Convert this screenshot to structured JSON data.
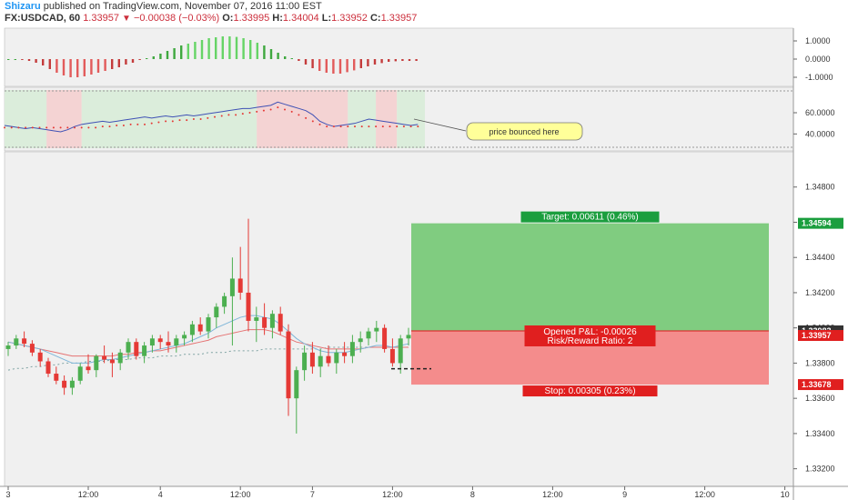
{
  "header": {
    "author": "Shizaru",
    "published_text": "published on TradingView.com, November 07, 2016 11:00 EST",
    "symbol": "FX:USDCAD, 60",
    "last": "1.33957",
    "change": "−0.00038 (−0.03%)",
    "o_label": "O:",
    "o_value": "1.33995",
    "h_label": "H:",
    "h_value": "1.34004",
    "l_label": "L:",
    "l_value": "1.33952",
    "c_label": "C:",
    "c_value": "1.33957"
  },
  "colors": {
    "up": "#26a69a",
    "bull_candle": "#4caf50",
    "bear_candle": "#e53935",
    "target_zone": "#80cc80",
    "stop_zone": "#f48c8c",
    "tag_green": "#1b9e3e",
    "tag_red": "#e01f1f",
    "rsi_line": "#3f51b5",
    "rsi_signal": "#e53935",
    "ma_fast": "#7eb6d9",
    "ma_slow": "#e57373",
    "ma_long": "#7fa3a3",
    "callout_fill": "#ffff99"
  },
  "chart_data": [
    {
      "type": "bar",
      "name": "histogram oscillator",
      "yticks": [
        "1.0000",
        "0.0000",
        "-1.0000"
      ],
      "ylim": [
        -1.3,
        1.5
      ],
      "values": [
        0.0,
        0.0,
        -0.05,
        -0.1,
        -0.2,
        -0.35,
        -0.55,
        -0.75,
        -0.9,
        -1.0,
        -1.0,
        -0.95,
        -0.85,
        -0.75,
        -0.65,
        -0.55,
        -0.45,
        -0.3,
        -0.2,
        -0.05,
        0.05,
        0.15,
        0.3,
        0.45,
        0.6,
        0.75,
        0.85,
        0.95,
        1.05,
        1.15,
        1.2,
        1.25,
        1.25,
        1.22,
        1.15,
        1.05,
        0.9,
        0.75,
        0.55,
        0.35,
        0.15,
        0.05,
        -0.1,
        -0.3,
        -0.5,
        -0.65,
        -0.75,
        -0.8,
        -0.8,
        -0.72,
        -0.62,
        -0.5,
        -0.4,
        -0.3,
        -0.22,
        -0.15,
        -0.12,
        -0.1,
        -0.1,
        -0.1
      ]
    },
    {
      "type": "line",
      "name": "rsi panel",
      "yticks": [
        "60.0000",
        "40.0000"
      ],
      "ylim": [
        24,
        84
      ],
      "series_rsi": [
        48,
        47,
        46,
        45,
        46,
        45,
        44,
        43,
        42,
        44,
        47,
        49,
        50,
        51,
        52,
        51,
        52,
        53,
        54,
        55,
        56,
        55,
        56,
        57,
        56,
        57,
        58,
        57,
        58,
        59,
        60,
        61,
        62,
        63,
        64,
        64,
        65,
        66,
        67,
        70,
        68,
        66,
        64,
        62,
        58,
        52,
        49,
        47,
        48,
        49,
        50,
        52,
        54,
        53,
        52,
        51,
        50,
        49,
        48,
        49
      ],
      "series_signal": [
        46,
        46,
        46,
        46,
        46,
        46,
        46,
        46,
        46,
        46,
        46,
        46,
        46,
        46,
        47,
        47,
        48,
        48,
        49,
        49,
        49,
        50,
        51,
        52,
        52,
        53,
        53,
        54,
        54,
        55,
        56,
        57,
        58,
        58,
        59,
        60,
        61,
        62,
        63,
        65,
        63,
        61,
        58,
        55,
        52,
        49,
        47,
        47,
        47,
        47,
        47,
        47,
        47,
        47,
        47,
        47,
        47,
        47,
        47,
        47
      ],
      "annotation": "price bounced here",
      "background_bands": [
        {
          "from": 0,
          "to": 6,
          "color": "green"
        },
        {
          "from": 6,
          "to": 11,
          "color": "red"
        },
        {
          "from": 11,
          "to": 36,
          "color": "green"
        },
        {
          "from": 36,
          "to": 49,
          "color": "red"
        },
        {
          "from": 49,
          "to": 53,
          "color": "green"
        },
        {
          "from": 53,
          "to": 56,
          "color": "red"
        },
        {
          "from": 56,
          "to": 60,
          "color": "green"
        }
      ]
    },
    {
      "type": "candlestick",
      "name": "USDCAD 60",
      "ylim": [
        1.331,
        1.35
      ],
      "yticks": [
        "1.34800",
        "1.34600",
        "1.34400",
        "1.34200",
        "1.34000",
        "1.33800",
        "1.33600",
        "1.33400",
        "1.33200"
      ],
      "xticks": [
        {
          "label": "3",
          "i": 0
        },
        {
          "label": "12:00",
          "i": 10
        },
        {
          "label": "4",
          "i": 19
        },
        {
          "label": "12:00",
          "i": 29
        },
        {
          "label": "7",
          "i": 38
        },
        {
          "label": "12:00",
          "i": 48
        },
        {
          "label": "8",
          "i": 58
        },
        {
          "label": "12:00",
          "i": 68
        },
        {
          "label": "9",
          "i": 77
        },
        {
          "label": "12:00",
          "i": 87
        },
        {
          "label": "10",
          "i": 97
        }
      ],
      "candles": [
        [
          1.3388,
          1.3392,
          1.3384,
          1.339
        ],
        [
          1.339,
          1.3396,
          1.3388,
          1.3394
        ],
        [
          1.3394,
          1.3398,
          1.3389,
          1.3391
        ],
        [
          1.3391,
          1.3393,
          1.3384,
          1.3386
        ],
        [
          1.3386,
          1.3388,
          1.3378,
          1.3381
        ],
        [
          1.3381,
          1.3383,
          1.3372,
          1.3374
        ],
        [
          1.3374,
          1.3378,
          1.3368,
          1.337
        ],
        [
          1.337,
          1.3373,
          1.3362,
          1.3366
        ],
        [
          1.3366,
          1.3372,
          1.3362,
          1.337
        ],
        [
          1.337,
          1.338,
          1.3368,
          1.3378
        ],
        [
          1.3378,
          1.3385,
          1.3374,
          1.3376
        ],
        [
          1.3376,
          1.3385,
          1.3372,
          1.3384
        ],
        [
          1.3384,
          1.339,
          1.338,
          1.3382
        ],
        [
          1.3382,
          1.3386,
          1.3372,
          1.338
        ],
        [
          1.338,
          1.3388,
          1.3376,
          1.3386
        ],
        [
          1.3386,
          1.3394,
          1.3382,
          1.3392
        ],
        [
          1.3392,
          1.3394,
          1.3382,
          1.3384
        ],
        [
          1.3384,
          1.3392,
          1.338,
          1.339
        ],
        [
          1.339,
          1.3396,
          1.3386,
          1.3394
        ],
        [
          1.3394,
          1.3396,
          1.3388,
          1.3392
        ],
        [
          1.3392,
          1.3398,
          1.3386,
          1.339
        ],
        [
          1.339,
          1.3396,
          1.3386,
          1.3394
        ],
        [
          1.3394,
          1.3398,
          1.339,
          1.3396
        ],
        [
          1.3396,
          1.3404,
          1.3392,
          1.3402
        ],
        [
          1.3402,
          1.3406,
          1.3396,
          1.3398
        ],
        [
          1.3398,
          1.3408,
          1.3394,
          1.3406
        ],
        [
          1.3406,
          1.3414,
          1.34,
          1.3412
        ],
        [
          1.3412,
          1.342,
          1.3408,
          1.3418
        ],
        [
          1.3418,
          1.344,
          1.339,
          1.3428
        ],
        [
          1.3428,
          1.3446,
          1.3416,
          1.342
        ],
        [
          1.342,
          1.3462,
          1.3398,
          1.3404
        ],
        [
          1.3404,
          1.3412,
          1.3392,
          1.3406
        ],
        [
          1.3406,
          1.3414,
          1.3396,
          1.34
        ],
        [
          1.34,
          1.341,
          1.3394,
          1.3408
        ],
        [
          1.3408,
          1.3412,
          1.3396,
          1.3398
        ],
        [
          1.3398,
          1.3402,
          1.335,
          1.336
        ],
        [
          1.336,
          1.3378,
          1.334,
          1.3376
        ],
        [
          1.3376,
          1.339,
          1.337,
          1.3386
        ],
        [
          1.3386,
          1.3392,
          1.3374,
          1.3378
        ],
        [
          1.3378,
          1.3388,
          1.3372,
          1.3384
        ],
        [
          1.3384,
          1.339,
          1.3378,
          1.338
        ],
        [
          1.338,
          1.3388,
          1.3374,
          1.3386
        ],
        [
          1.3386,
          1.3392,
          1.338,
          1.3384
        ],
        [
          1.3384,
          1.3396,
          1.338,
          1.3392
        ],
        [
          1.3392,
          1.3398,
          1.3386,
          1.3394
        ],
        [
          1.3394,
          1.34,
          1.339,
          1.3398
        ],
        [
          1.3398,
          1.3404,
          1.3392,
          1.34
        ],
        [
          1.34,
          1.3402,
          1.3386,
          1.3388
        ],
        [
          1.3388,
          1.3394,
          1.3378,
          1.338
        ],
        [
          1.338,
          1.3396,
          1.3374,
          1.3394
        ],
        [
          1.3394,
          1.34,
          1.339,
          1.3396
        ]
      ],
      "ma_fast": [
        1.3392,
        1.3391,
        1.339,
        1.3389,
        1.3388,
        1.3386,
        1.3384,
        1.3382,
        1.338,
        1.338,
        1.338,
        1.3381,
        1.3382,
        1.3382,
        1.3383,
        1.3384,
        1.3385,
        1.3386,
        1.3387,
        1.3388,
        1.3389,
        1.339,
        1.3391,
        1.3393,
        1.3395,
        1.3397,
        1.34,
        1.3402,
        1.3404,
        1.3406,
        1.3407,
        1.3407,
        1.3406,
        1.3405,
        1.3402,
        1.3398,
        1.3394,
        1.3391,
        1.3389,
        1.3387,
        1.3386,
        1.3386,
        1.3386,
        1.3387,
        1.3388,
        1.3389,
        1.339,
        1.339,
        1.3389,
        1.339,
        1.3391
      ],
      "ma_slow": [
        1.3392,
        1.3391,
        1.339,
        1.3389,
        1.3388,
        1.3387,
        1.3386,
        1.3385,
        1.3384,
        1.3384,
        1.3384,
        1.3384,
        1.3384,
        1.3384,
        1.3385,
        1.3385,
        1.3386,
        1.3386,
        1.3387,
        1.3387,
        1.3388,
        1.3389,
        1.339,
        1.3391,
        1.3392,
        1.3393,
        1.3395,
        1.3396,
        1.3397,
        1.3398,
        1.3399,
        1.3399,
        1.3399,
        1.3398,
        1.3396,
        1.3394,
        1.3392,
        1.3391,
        1.339,
        1.3389,
        1.3388,
        1.3388,
        1.3388,
        1.3388,
        1.3388,
        1.3389,
        1.3389,
        1.3389,
        1.3389,
        1.3389,
        1.3389
      ],
      "ma_long": [
        1.3376,
        1.3377,
        1.3377,
        1.3378,
        1.3378,
        1.3379,
        1.3379,
        1.338,
        1.338,
        1.338,
        1.3381,
        1.3381,
        1.3381,
        1.3382,
        1.3382,
        1.3382,
        1.3383,
        1.3383,
        1.3383,
        1.3384,
        1.3384,
        1.3384,
        1.3385,
        1.3385,
        1.3385,
        1.3386,
        1.3386,
        1.3386,
        1.3387,
        1.3387,
        1.3387,
        1.3387,
        1.3388,
        1.3388,
        1.3388,
        1.3388,
        1.3388,
        1.3388,
        1.3388,
        1.3388,
        1.3389,
        1.3389,
        1.3389,
        1.3389,
        1.3389,
        1.3389,
        1.3389,
        1.3389,
        1.3389,
        1.3389,
        1.3389
      ],
      "position": {
        "entry": 1.33983,
        "target": 1.34594,
        "stop": 1.33678,
        "start_i": 50,
        "end_i": 95,
        "target_label": "Target: 0.00611 (0.46%)",
        "stop_label": "Stop: 0.00305 (0.23%)",
        "pnl_label": "Opened P&L: -0.00026",
        "rr_label": "Risk/Reward Ratio: 2",
        "marker_price": 1.33768
      },
      "price_tags": [
        {
          "text": "1.34594",
          "price": 1.34594,
          "color": "green"
        },
        {
          "text": "1.33983",
          "price": 1.33983,
          "color": "dark"
        },
        {
          "text": "1.33957",
          "price": 1.33957,
          "color": "red"
        },
        {
          "text": "1.33678",
          "price": 1.33678,
          "color": "red"
        }
      ]
    }
  ]
}
